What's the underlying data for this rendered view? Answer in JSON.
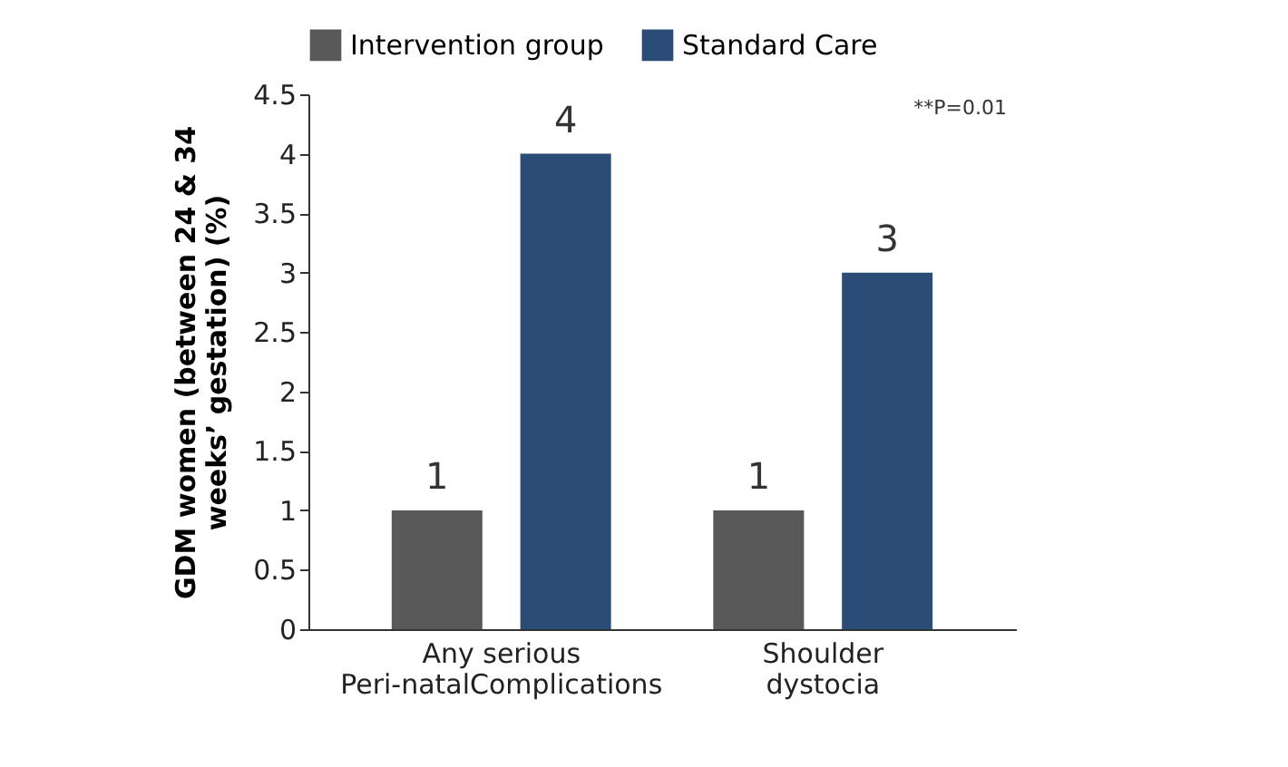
{
  "chart_data": {
    "type": "bar",
    "ylabel": "GDM women (between 24 & 34\nweeks’ gestation) (%)",
    "categories": [
      "Any serious\nPeri-natalComplications",
      "Shoulder\ndystocia"
    ],
    "series": [
      {
        "name": "Intervention group",
        "color": "#595959",
        "values": [
          1,
          1
        ]
      },
      {
        "name": "Standard Care",
        "color": "#2b4c76",
        "values": [
          4,
          3
        ]
      }
    ],
    "ylim": [
      0,
      4.5
    ],
    "yticks": [
      0,
      0.5,
      1,
      1.5,
      2,
      2.5,
      3,
      3.5,
      4,
      4.5
    ],
    "data_labels": true,
    "legend": "top",
    "grid": false,
    "annotations": [
      "**P=0.01"
    ]
  }
}
